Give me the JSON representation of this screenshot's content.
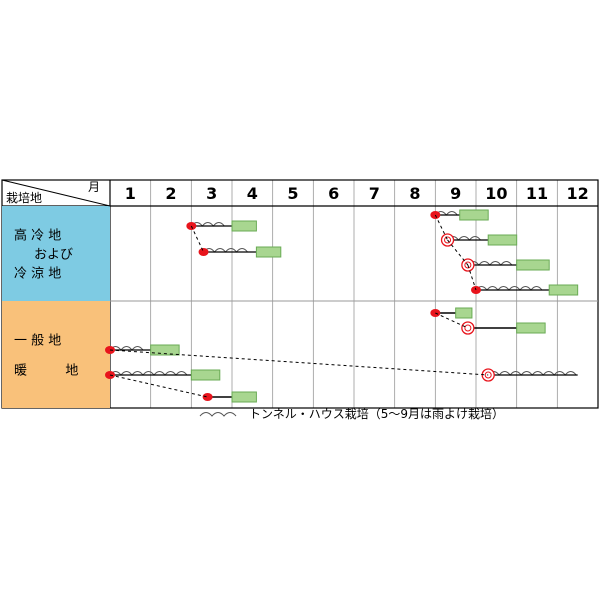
{
  "chart_data": {
    "type": "table",
    "header": {
      "region_label": "栽培地",
      "month_label": "月"
    },
    "months": [
      "1",
      "2",
      "3",
      "4",
      "5",
      "6",
      "7",
      "8",
      "9",
      "10",
      "11",
      "12"
    ],
    "regions": [
      {
        "name_lines": [
          "高 冷 地",
          "および",
          "冷 涼 地"
        ],
        "color": "#7ecbe3",
        "rows": [
          {
            "sow": 3.0,
            "tunnel_end": 4.0,
            "harvest": [
              4.0,
              4.6
            ]
          },
          {
            "sow": 3.3,
            "tunnel_end": 4.6,
            "harvest": [
              4.6,
              5.2
            ]
          },
          {
            "sow": 9.0,
            "tunnel_end": 9.6,
            "harvest": [
              9.6,
              10.3
            ]
          },
          {
            "sow": 9.3,
            "seedling": true,
            "tunnel_end": 10.3,
            "harvest": [
              10.3,
              11.0
            ]
          },
          {
            "sow": 9.8,
            "seedling": true,
            "tunnel_end": 11.0,
            "harvest": [
              11.0,
              11.8
            ]
          },
          {
            "sow": 10.0,
            "tunnel_end": 11.8,
            "harvest": [
              11.8,
              12.5
            ]
          }
        ]
      },
      {
        "name_lines": [
          "一 般 地",
          "暖 　 　 地"
        ],
        "color": "#f9c17a",
        "rows": [
          {
            "sow": 9.0,
            "line_end": 9.5,
            "harvest": [
              9.5,
              9.9
            ]
          },
          {
            "sow": 9.8,
            "seedling": true,
            "line_end": 11.0,
            "harvest": [
              11.0,
              11.7
            ]
          },
          {
            "sow": 1.0,
            "tunnel_end": 2.0,
            "harvest": [
              2.0,
              2.7
            ]
          },
          {
            "sow": 10.3,
            "seedling": true,
            "tunnel_end": 12.5,
            "harvest": null
          },
          {
            "sow": 1.0,
            "tunnel_end": 3.0,
            "harvest": [
              3.0,
              3.7
            ]
          },
          {
            "sow": 3.4,
            "line_end": 4.0,
            "harvest": [
              4.0,
              4.6
            ]
          }
        ],
        "dotted_links": [
          [
            0,
            1
          ],
          [
            2,
            3
          ],
          [
            4,
            5
          ]
        ]
      }
    ],
    "legend": "トンネル・ハウス栽培（5～9月は雨よけ栽培）"
  }
}
